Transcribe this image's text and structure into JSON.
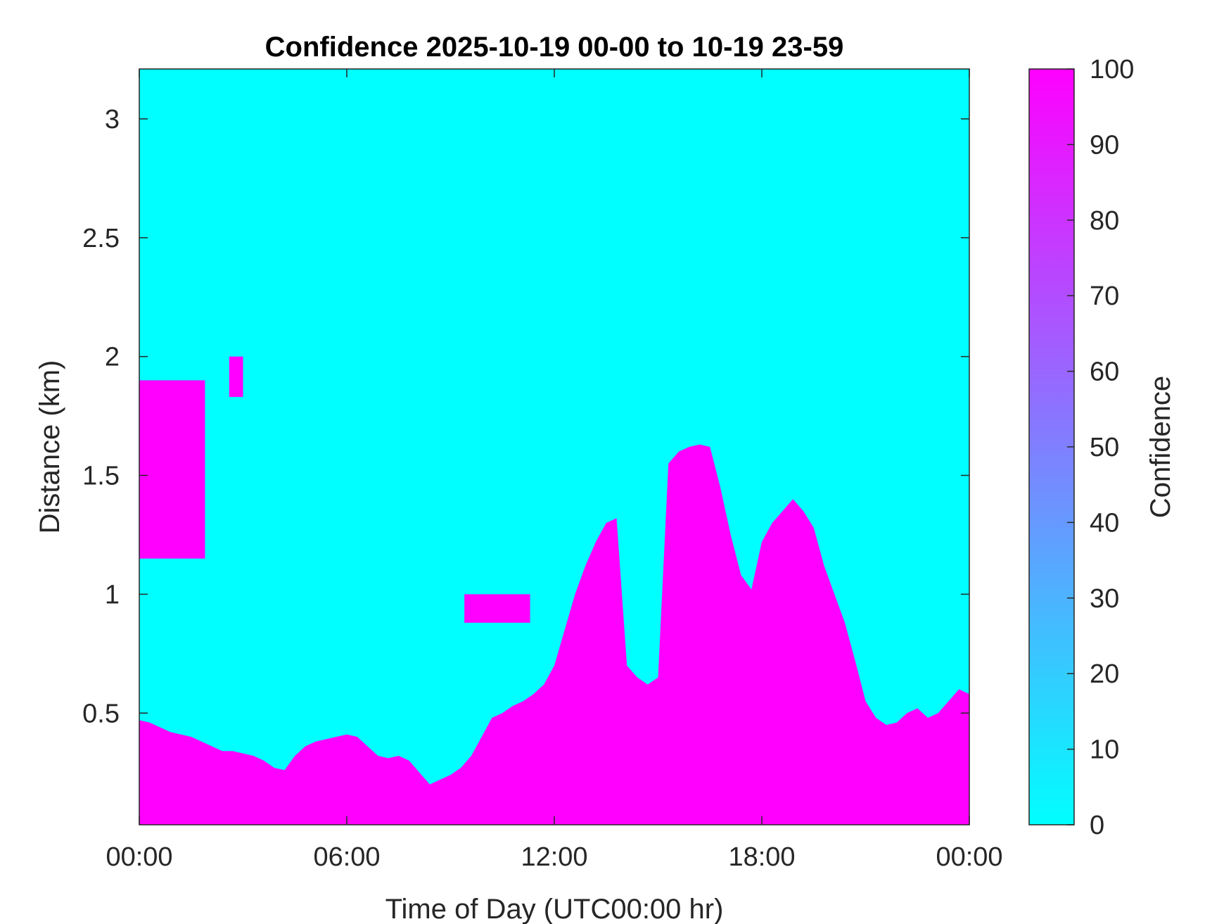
{
  "chart_data": {
    "type": "heatmap",
    "title": "Confidence 2025-10-19 00-00 to 10-19 23-59",
    "xlabel": "Time of Day (UTC00:00 hr)",
    "ylabel": "Distance (km)",
    "x_range_hours": [
      0,
      24
    ],
    "x_ticks": [
      {
        "value": 0,
        "label": "00:00"
      },
      {
        "value": 6,
        "label": "06:00"
      },
      {
        "value": 12,
        "label": "12:00"
      },
      {
        "value": 18,
        "label": "18:00"
      },
      {
        "value": 24,
        "label": "00:00"
      }
    ],
    "ylim": [
      0.03,
      3.21
    ],
    "y_ticks": [
      {
        "value": 0.5,
        "label": "0.5"
      },
      {
        "value": 1,
        "label": "1"
      },
      {
        "value": 1.5,
        "label": "1.5"
      },
      {
        "value": 2,
        "label": "2"
      },
      {
        "value": 2.5,
        "label": "2.5"
      },
      {
        "value": 3,
        "label": "3"
      }
    ],
    "colorbar": {
      "label": "Confidence",
      "range": [
        0,
        100
      ],
      "ticks": [
        "0",
        "10",
        "20",
        "30",
        "40",
        "50",
        "60",
        "70",
        "80",
        "90",
        "100"
      ],
      "colormap": "cool",
      "low_color": "#00ffff",
      "high_color": "#ff00ff"
    },
    "background_value": 0,
    "layer_value": 100,
    "layer_boundary": {
      "description": "Upper boundary (km) of the high-confidence (100) layer extending from the lowest range gate",
      "time_hours": [
        0,
        0.3,
        0.6,
        0.9,
        1.2,
        1.5,
        1.8,
        2.1,
        2.4,
        2.7,
        3.0,
        3.3,
        3.6,
        3.9,
        4.2,
        4.5,
        4.8,
        5.1,
        5.4,
        5.7,
        6.0,
        6.3,
        6.6,
        6.9,
        7.2,
        7.5,
        7.8,
        8.1,
        8.4,
        8.7,
        9.0,
        9.3,
        9.6,
        9.9,
        10.2,
        10.5,
        10.8,
        11.1,
        11.4,
        11.7,
        12.0,
        12.3,
        12.6,
        12.9,
        13.2,
        13.5,
        13.8,
        14.1,
        14.4,
        14.7,
        15.0,
        15.3,
        15.6,
        15.9,
        16.2,
        16.5,
        16.8,
        17.1,
        17.4,
        17.7,
        18.0,
        18.3,
        18.6,
        18.9,
        19.2,
        19.5,
        19.8,
        20.1,
        20.4,
        20.7,
        21.0,
        21.3,
        21.6,
        21.9,
        22.2,
        22.5,
        22.8,
        23.1,
        23.4,
        23.7,
        24.0
      ],
      "top_km": [
        0.47,
        0.46,
        0.44,
        0.42,
        0.41,
        0.4,
        0.38,
        0.36,
        0.34,
        0.34,
        0.33,
        0.32,
        0.3,
        0.27,
        0.26,
        0.32,
        0.36,
        0.38,
        0.39,
        0.4,
        0.41,
        0.4,
        0.36,
        0.32,
        0.31,
        0.32,
        0.3,
        0.25,
        0.2,
        0.22,
        0.24,
        0.27,
        0.32,
        0.4,
        0.48,
        0.5,
        0.53,
        0.55,
        0.58,
        0.62,
        0.7,
        0.85,
        1.0,
        1.12,
        1.22,
        1.3,
        1.32,
        0.7,
        0.65,
        0.62,
        0.65,
        1.55,
        1.6,
        1.62,
        1.63,
        1.62,
        1.45,
        1.25,
        1.08,
        1.02,
        1.22,
        1.3,
        1.35,
        1.4,
        1.35,
        1.28,
        1.12,
        1.0,
        0.88,
        0.72,
        0.55,
        0.48,
        0.45,
        0.46,
        0.5,
        0.52,
        0.48,
        0.5,
        0.55,
        0.6,
        0.58
      ]
    },
    "additional_patches": [
      {
        "time_hours": [
          0.0,
          1.9
        ],
        "km": [
          1.15,
          1.9
        ],
        "value": 100
      },
      {
        "time_hours": [
          9.4,
          11.3
        ],
        "km": [
          0.88,
          1.0
        ],
        "value": 100
      },
      {
        "time_hours": [
          2.6,
          3.0
        ],
        "km": [
          1.83,
          2.0
        ],
        "value": 100
      }
    ]
  }
}
